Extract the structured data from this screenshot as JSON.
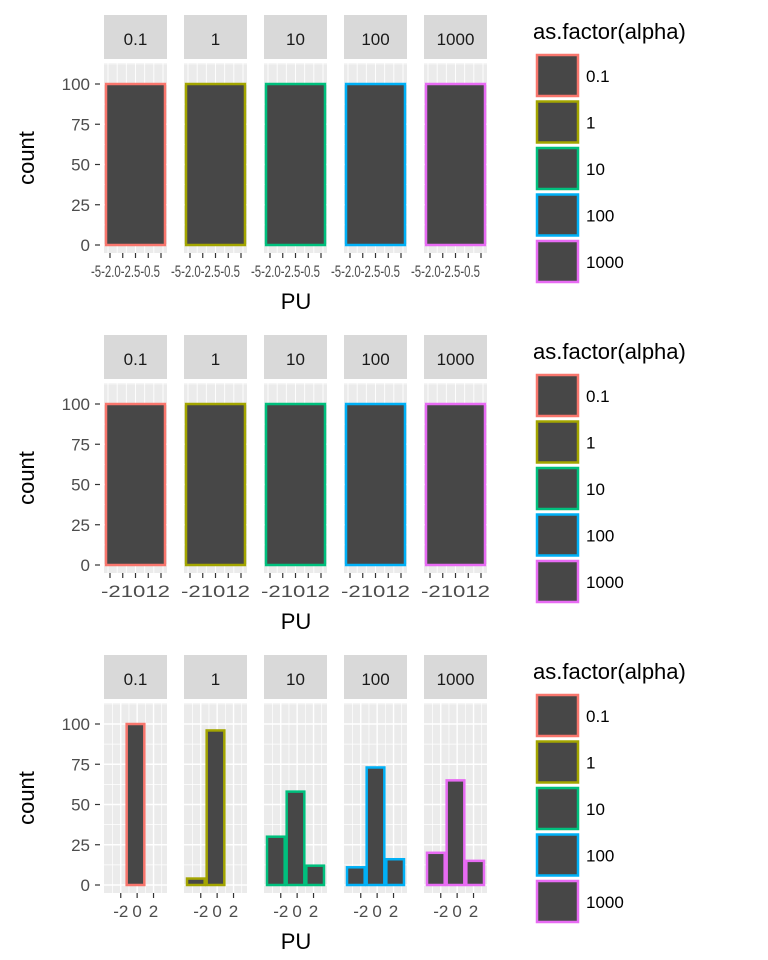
{
  "chart_data": [
    {
      "type": "bar",
      "facet_var": "alpha",
      "panels": [
        "0.1",
        "1",
        "10",
        "100",
        "1000"
      ],
      "xlabel": "PU",
      "ylabel": "count",
      "ylim": [
        0,
        125
      ],
      "yticks": [
        0,
        25,
        50,
        75,
        100
      ],
      "xticks": [],
      "xtick_label_text": "-5-2.0-2.5-0.5",
      "grid": true,
      "bars": [
        {
          "panel": "0.1",
          "count": 100
        },
        {
          "panel": "1",
          "count": 100
        },
        {
          "panel": "10",
          "count": 100
        },
        {
          "panel": "100",
          "count": 100
        },
        {
          "panel": "1000",
          "count": 100
        }
      ],
      "legend": {
        "title": "as.factor(alpha)",
        "position": "right"
      }
    },
    {
      "type": "bar",
      "facet_var": "alpha",
      "panels": [
        "0.1",
        "1",
        "10",
        "100",
        "1000"
      ],
      "xlabel": "PU",
      "ylabel": "count",
      "ylim": [
        0,
        125
      ],
      "yticks": [
        0,
        25,
        50,
        75,
        100
      ],
      "xticks": [],
      "xtick_label_text": "-21012",
      "grid": true,
      "bars": [
        {
          "panel": "0.1",
          "count": 100
        },
        {
          "panel": "1",
          "count": 100
        },
        {
          "panel": "10",
          "count": 100
        },
        {
          "panel": "100",
          "count": 100
        },
        {
          "panel": "1000",
          "count": 100
        }
      ],
      "legend": {
        "title": "as.factor(alpha)",
        "position": "right"
      }
    },
    {
      "type": "bar",
      "facet_var": "alpha",
      "panels": [
        "0.1",
        "1",
        "10",
        "100",
        "1000"
      ],
      "xlabel": "PU",
      "ylabel": "count",
      "ylim": [
        0,
        125
      ],
      "yticks": [
        0,
        25,
        50,
        75,
        100
      ],
      "xlim": [
        -3.8,
        3.4
      ],
      "xticks": [
        -2,
        0,
        2
      ],
      "xtick_labels": [
        "-2",
        "0",
        "2"
      ],
      "grid": true,
      "bars": [
        {
          "panel": "0.1",
          "bins": [
            {
              "x0": -3.8,
              "x1": -1.4,
              "count": 0
            },
            {
              "x0": -1.4,
              "x1": 1.0,
              "count": 100
            },
            {
              "x0": 1.0,
              "x1": 3.4,
              "count": 0
            }
          ]
        },
        {
          "panel": "1",
          "bins": [
            {
              "x0": -3.8,
              "x1": -1.4,
              "count": 4
            },
            {
              "x0": -1.4,
              "x1": 1.0,
              "count": 96
            },
            {
              "x0": 1.0,
              "x1": 3.4,
              "count": 0
            }
          ]
        },
        {
          "panel": "10",
          "bins": [
            {
              "x0": -3.8,
              "x1": -1.4,
              "count": 30
            },
            {
              "x0": -1.4,
              "x1": 1.0,
              "count": 58
            },
            {
              "x0": 1.0,
              "x1": 3.4,
              "count": 12
            }
          ]
        },
        {
          "panel": "100",
          "bins": [
            {
              "x0": -3.8,
              "x1": -1.4,
              "count": 11
            },
            {
              "x0": -1.4,
              "x1": 1.0,
              "count": 73
            },
            {
              "x0": 1.0,
              "x1": 3.4,
              "count": 16
            }
          ]
        },
        {
          "panel": "1000",
          "bins": [
            {
              "x0": -3.8,
              "x1": -1.4,
              "count": 20
            },
            {
              "x0": -1.4,
              "x1": 1.0,
              "count": 65
            },
            {
              "x0": 1.0,
              "x1": 3.4,
              "count": 15
            }
          ]
        }
      ],
      "legend": {
        "title": "as.factor(alpha)",
        "position": "right"
      }
    }
  ],
  "legend": {
    "title": "as.factor(alpha)",
    "keys": [
      "0.1",
      "1",
      "10",
      "100",
      "1000"
    ]
  },
  "colors": {
    "0.1": "#F8766D",
    "1": "#A3A500",
    "10": "#00BF7D",
    "100": "#00B0F6",
    "1000": "#E76BF3",
    "bar_fill": "#474747",
    "panel_bg": "#EBEBEB",
    "strip_bg": "#D9D9D9",
    "grid": "#FFFFFF",
    "axis_text": "#4D4D4D"
  }
}
